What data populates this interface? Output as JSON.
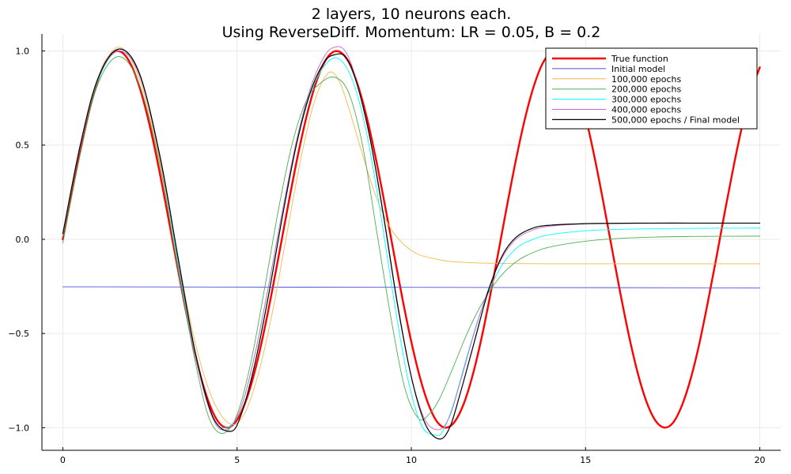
{
  "chart_data": {
    "type": "line",
    "title": [
      "2 layers, 10 neurons each.",
      "Using ReverseDiff. Momentum: LR = 0.05, B = 0.2"
    ],
    "xlabel": "",
    "ylabel": "",
    "xlim": [
      -0.6,
      20.6
    ],
    "ylim": [
      -1.12,
      1.09
    ],
    "xticks": [
      0,
      5,
      10,
      15,
      20
    ],
    "xtick_labels": [
      "0",
      "5",
      "10",
      "15",
      "20"
    ],
    "yticks": [
      -1.0,
      -0.5,
      0.0,
      0.5,
      1.0
    ],
    "ytick_labels": [
      "−1.0",
      "−0.5",
      "0.0",
      "0.5",
      "1.0"
    ],
    "grid": true,
    "legend_position": "top-right",
    "series": [
      {
        "name": "True function",
        "color": "#ff0000",
        "width": 2.4,
        "x": [
          0,
          0.25,
          0.5,
          0.75,
          1,
          1.25,
          1.5,
          1.75,
          2,
          2.25,
          2.5,
          2.75,
          3,
          3.25,
          3.5,
          3.75,
          4,
          4.25,
          4.5,
          4.75,
          5,
          5.25,
          5.5,
          5.75,
          6,
          6.25,
          6.5,
          6.75,
          7,
          7.25,
          7.5,
          7.75,
          8,
          8.25,
          8.5,
          8.75,
          9,
          9.25,
          9.5,
          9.75,
          10,
          10.25,
          10.5,
          10.75,
          11,
          11.25,
          11.5,
          11.75,
          12,
          12.25,
          12.5,
          12.75,
          13,
          13.25,
          13.5,
          13.75,
          14,
          14.25,
          14.5,
          14.75,
          15,
          15.25,
          15.5,
          15.75,
          16,
          16.25,
          16.5,
          16.75,
          17,
          17.25,
          17.5,
          17.75,
          18,
          18.25,
          18.5,
          18.75,
          19,
          19.25,
          19.5,
          19.75,
          20
        ],
        "y": [
          0,
          0.247,
          0.479,
          0.682,
          0.841,
          0.949,
          0.997,
          0.984,
          0.909,
          0.778,
          0.598,
          0.382,
          0.141,
          -0.108,
          -0.351,
          -0.572,
          -0.757,
          -0.895,
          -0.978,
          -0.999,
          -0.959,
          -0.859,
          -0.706,
          -0.508,
          -0.279,
          -0.033,
          0.215,
          0.451,
          0.657,
          0.823,
          0.938,
          0.994,
          0.989,
          0.925,
          0.798,
          0.625,
          0.412,
          0.174,
          -0.075,
          -0.32,
          -0.544,
          -0.735,
          -0.88,
          -0.971,
          -1.0,
          -0.967,
          -0.875,
          -0.728,
          -0.537,
          -0.311,
          -0.066,
          0.182,
          0.42,
          0.632,
          0.804,
          0.927,
          0.991,
          0.993,
          0.935,
          0.818,
          0.65,
          0.442,
          0.207,
          -0.042,
          -0.288,
          -0.516,
          -0.712,
          -0.863,
          -0.961,
          -0.999,
          -0.976,
          -0.889,
          -0.751,
          -0.566,
          -0.342,
          -0.101,
          0.15,
          0.389,
          0.607,
          0.785,
          0.913
        ]
      },
      {
        "name": "Initial model",
        "color": "#5050e0",
        "width": 0.9,
        "x": [
          0,
          20
        ],
        "y": [
          -0.252,
          -0.258
        ]
      },
      {
        "name": "100,000 epochs",
        "color": "#f5b84a",
        "width": 0.9,
        "x": [
          0,
          0.5,
          1,
          1.6,
          2.2,
          2.8,
          3.3,
          3.8,
          4.3,
          4.8,
          5.2,
          5.6,
          6,
          6.4,
          6.8,
          7.2,
          7.6,
          7.9,
          8.2,
          8.6,
          9,
          9.4,
          9.8,
          10.2,
          10.6,
          11,
          11.5,
          12,
          12.5,
          13,
          14,
          15,
          16,
          17,
          18,
          19,
          20
        ],
        "y": [
          0.02,
          0.5,
          0.85,
          1.02,
          0.85,
          0.4,
          -0.1,
          -0.55,
          -0.85,
          -0.98,
          -0.93,
          -0.72,
          -0.4,
          0.0,
          0.4,
          0.72,
          0.88,
          0.85,
          0.7,
          0.45,
          0.22,
          0.06,
          -0.03,
          -0.08,
          -0.1,
          -0.115,
          -0.122,
          -0.126,
          -0.128,
          -0.129,
          -0.13,
          -0.13,
          -0.13,
          -0.13,
          -0.13,
          -0.13,
          -0.13
        ]
      },
      {
        "name": "200,000 epochs",
        "color": "#4caf50",
        "width": 0.9,
        "x": [
          0,
          0.5,
          1,
          1.6,
          2.2,
          2.8,
          3.3,
          3.8,
          4.2,
          4.6,
          5,
          5.4,
          5.8,
          6.2,
          6.6,
          7,
          7.4,
          7.8,
          8.2,
          8.6,
          9,
          9.4,
          9.8,
          10.2,
          10.5,
          10.8,
          11.2,
          11.6,
          12,
          12.5,
          13,
          13.5,
          14,
          15,
          16,
          17,
          18,
          19,
          20
        ],
        "y": [
          -0.02,
          0.45,
          0.82,
          0.97,
          0.82,
          0.38,
          -0.15,
          -0.65,
          -0.95,
          -1.03,
          -0.93,
          -0.65,
          -0.25,
          0.17,
          0.52,
          0.74,
          0.83,
          0.86,
          0.78,
          0.5,
          0.05,
          -0.4,
          -0.78,
          -0.95,
          -0.93,
          -0.85,
          -0.68,
          -0.5,
          -0.35,
          -0.21,
          -0.12,
          -0.07,
          -0.04,
          -0.01,
          0.005,
          0.012,
          0.015,
          0.016,
          0.017
        ]
      },
      {
        "name": "300,000 epochs",
        "color": "#00ffff",
        "width": 0.9,
        "x": [
          0,
          0.5,
          1,
          1.6,
          2.2,
          2.8,
          3.3,
          3.8,
          4.3,
          4.7,
          5.1,
          5.5,
          5.9,
          6.3,
          6.7,
          7.1,
          7.5,
          7.9,
          8.3,
          8.7,
          9.1,
          9.5,
          9.9,
          10.3,
          10.7,
          10.9,
          11.2,
          11.6,
          12,
          12.5,
          13,
          13.5,
          14,
          15,
          16,
          17,
          18,
          19,
          20
        ],
        "y": [
          0.02,
          0.49,
          0.84,
          1.0,
          0.87,
          0.42,
          -0.12,
          -0.62,
          -0.94,
          -1.0,
          -0.9,
          -0.62,
          -0.25,
          0.15,
          0.5,
          0.77,
          0.92,
          0.96,
          0.85,
          0.58,
          0.16,
          -0.32,
          -0.74,
          -0.99,
          -1.04,
          -1.02,
          -0.88,
          -0.62,
          -0.38,
          -0.17,
          -0.05,
          0.0,
          0.025,
          0.045,
          0.053,
          0.056,
          0.058,
          0.059,
          0.06
        ]
      },
      {
        "name": "400,000 epochs",
        "color": "#c865c8",
        "width": 0.9,
        "x": [
          0,
          0.5,
          1,
          1.6,
          2.2,
          2.8,
          3.3,
          3.8,
          4.3,
          4.7,
          5.1,
          5.5,
          5.9,
          6.3,
          6.7,
          7.1,
          7.5,
          7.8,
          8.1,
          8.4,
          8.8,
          9.2,
          9.6,
          10,
          10.4,
          10.8,
          11.1,
          11.4,
          11.8,
          12.2,
          12.6,
          13,
          13.5,
          14,
          15,
          16,
          17,
          18,
          19,
          20
        ],
        "y": [
          0.03,
          0.49,
          0.85,
          1.0,
          0.87,
          0.42,
          -0.1,
          -0.62,
          -0.95,
          -1.01,
          -0.9,
          -0.62,
          -0.25,
          0.15,
          0.52,
          0.8,
          0.97,
          1.02,
          1.0,
          0.86,
          0.55,
          0.12,
          -0.35,
          -0.73,
          -0.96,
          -1.01,
          -0.94,
          -0.76,
          -0.5,
          -0.27,
          -0.1,
          0.0,
          0.05,
          0.07,
          0.083,
          0.085,
          0.086,
          0.086,
          0.086,
          0.086
        ]
      },
      {
        "name": "500,000 epochs / Final model",
        "color": "#000000",
        "width": 1.2,
        "x": [
          0,
          0.5,
          1,
          1.6,
          2.2,
          2.8,
          3.3,
          3.8,
          4.3,
          4.8,
          5.1,
          5.5,
          5.9,
          6.3,
          6.7,
          7.1,
          7.5,
          7.8,
          8.1,
          8.4,
          8.8,
          9.2,
          9.6,
          10,
          10.4,
          10.8,
          11.1,
          11.4,
          11.8,
          12.2,
          12.6,
          13,
          13.5,
          14,
          15,
          16,
          17,
          18,
          19,
          20
        ],
        "y": [
          0.03,
          0.5,
          0.85,
          1.01,
          0.88,
          0.43,
          -0.09,
          -0.6,
          -0.94,
          -1.02,
          -0.94,
          -0.67,
          -0.3,
          0.12,
          0.5,
          0.78,
          0.94,
          0.98,
          0.97,
          0.85,
          0.55,
          0.13,
          -0.34,
          -0.73,
          -0.98,
          -1.06,
          -1.0,
          -0.82,
          -0.55,
          -0.28,
          -0.09,
          0.01,
          0.06,
          0.075,
          0.083,
          0.085,
          0.086,
          0.086,
          0.086,
          0.086
        ]
      }
    ]
  }
}
